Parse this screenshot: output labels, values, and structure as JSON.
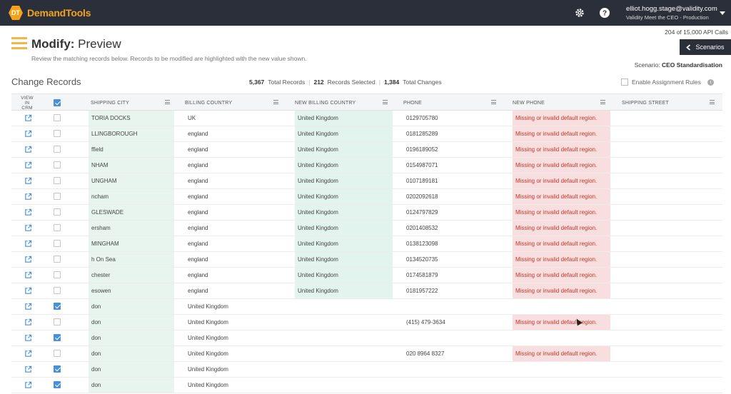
{
  "app": {
    "logo_badge": "DT",
    "logo_text": "DemandTools"
  },
  "user": {
    "email": "elliot.hogg.stage@validity.com",
    "org": "Validity Meet the CEO - Production"
  },
  "header": {
    "api_calls": "204 of 15,000 API Calls",
    "title_bold": "Modify:",
    "title_rest": " Preview",
    "subtitle": "Review the matching records below. Records to be modified are highlighted with the new value shown.",
    "scenarios_label": "Scenarios",
    "scenario_prefix": "Scenario:",
    "scenario_name": "CEO Standardisation"
  },
  "section": {
    "title": "Change Records",
    "total_records_num": "5,367",
    "total_records_label": "Total Records",
    "selected_num": "212",
    "selected_label": "Records Selected",
    "changes_num": "1,384",
    "changes_label": "Total Changes",
    "assignment_rules": "Enable Assignment Rules"
  },
  "columns": {
    "view_in_crm_1": "VIEW",
    "view_in_crm_2": "IN CRM",
    "shipping_city": "SHIPPING CITY",
    "billing_country": "BILLING COUNTRY",
    "new_billing_country": "NEW BILLING COUNTRY",
    "phone": "PHONE",
    "new_phone": "NEW PHONE",
    "shipping_street": "SHIPPING STREET"
  },
  "colors": {
    "accent": "#f2a31b",
    "topbar": "#2b2f3a",
    "checkbox": "#4a90d9",
    "new_value_ok": "#e3f4ee",
    "new_value_err": "#f8dede"
  },
  "rows": [
    {
      "checked": false,
      "city": "TORIA DOCKS",
      "billing": "UK",
      "new_billing": "United Kingdom",
      "phone": "0129705780",
      "new_phone": "Missing or invalid default region."
    },
    {
      "checked": false,
      "city": "LLINGBOROUGH",
      "billing": "england",
      "new_billing": "United Kingdom",
      "phone": "0181285289",
      "new_phone": "Missing or invalid default region."
    },
    {
      "checked": false,
      "city": "ffield",
      "billing": "england",
      "new_billing": "United Kingdom",
      "phone": "0196189052",
      "new_phone": "Missing or invalid default region."
    },
    {
      "checked": false,
      "city": "NHAM",
      "billing": "england",
      "new_billing": "United Kingdom",
      "phone": "0154987071",
      "new_phone": "Missing or invalid default region."
    },
    {
      "checked": false,
      "city": "UNGHAM",
      "billing": "england",
      "new_billing": "United Kingdom",
      "phone": "0107189181",
      "new_phone": "Missing or invalid default region."
    },
    {
      "checked": false,
      "city": "ncham",
      "billing": "england",
      "new_billing": "United Kingdom",
      "phone": "0202092618",
      "new_phone": "Missing or invalid default region."
    },
    {
      "checked": false,
      "city": "GLESWADE",
      "billing": "england",
      "new_billing": "United Kingdom",
      "phone": "0124797829",
      "new_phone": "Missing or invalid default region."
    },
    {
      "checked": false,
      "city": "ersham",
      "billing": "england",
      "new_billing": "United Kingdom",
      "phone": "0201408532",
      "new_phone": "Missing or invalid default region."
    },
    {
      "checked": false,
      "city": "MINGHAM",
      "billing": "england",
      "new_billing": "United Kingdom",
      "phone": "0138123098",
      "new_phone": "Missing or invalid default region."
    },
    {
      "checked": false,
      "city": "h On Sea",
      "billing": "england",
      "new_billing": "United Kingdom",
      "phone": "0134520735",
      "new_phone": "Missing or invalid default region."
    },
    {
      "checked": false,
      "city": "chester",
      "billing": "england",
      "new_billing": "United Kingdom",
      "phone": "0174581879",
      "new_phone": "Missing or invalid default region."
    },
    {
      "checked": false,
      "city": "esowen",
      "billing": "england",
      "new_billing": "United Kingdom",
      "phone": "0181957222",
      "new_phone": "Missing or invalid default region."
    },
    {
      "checked": true,
      "city": "don",
      "billing": "United Kingdom",
      "new_billing": "",
      "phone": "",
      "new_phone": ""
    },
    {
      "checked": false,
      "city": "don",
      "billing": "United Kingdom",
      "new_billing": "",
      "phone": "(415) 479-3634",
      "new_phone": "Missing or invalid default region."
    },
    {
      "checked": true,
      "city": "don",
      "billing": "United Kingdom",
      "new_billing": "",
      "phone": "",
      "new_phone": ""
    },
    {
      "checked": false,
      "city": "don",
      "billing": "United Kingdom",
      "new_billing": "",
      "phone": "020 8964 8327",
      "new_phone": "Missing or invalid default region."
    },
    {
      "checked": true,
      "city": "don",
      "billing": "United Kingdom",
      "new_billing": "",
      "phone": "",
      "new_phone": ""
    },
    {
      "checked": true,
      "city": "don",
      "billing": "United Kingdom",
      "new_billing": "",
      "phone": "",
      "new_phone": ""
    }
  ]
}
